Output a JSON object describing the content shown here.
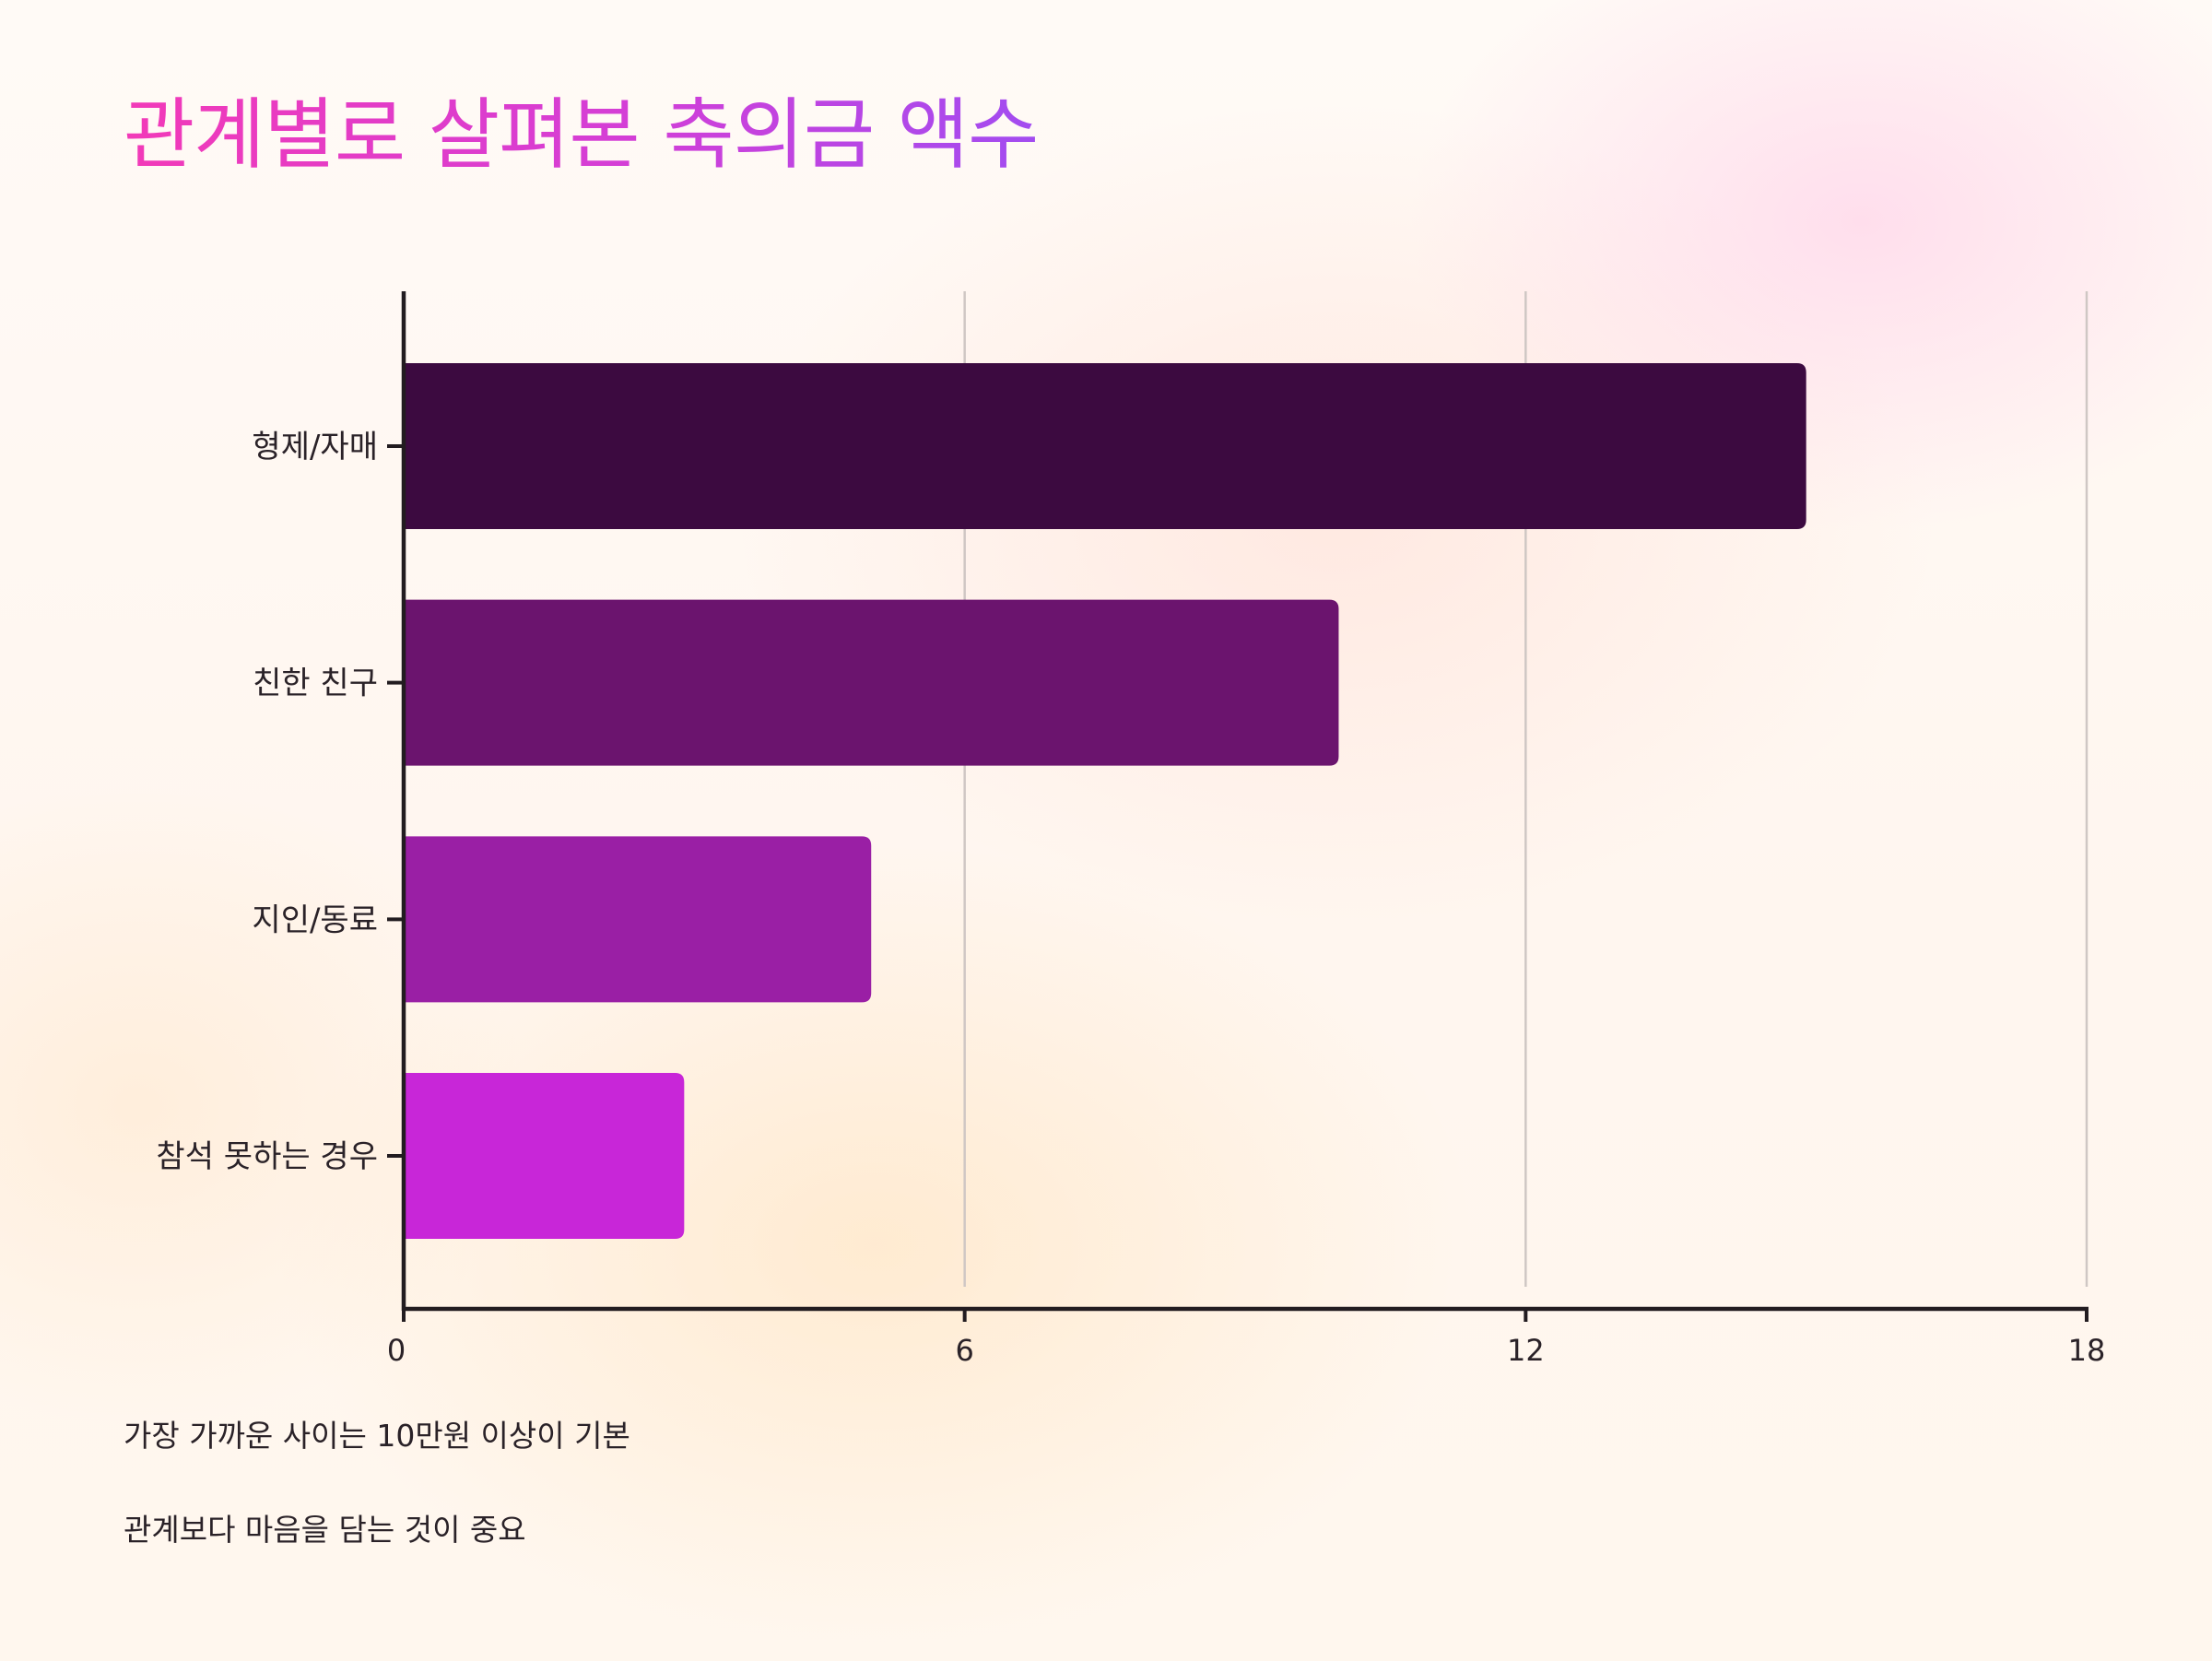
{
  "title": "관계별로 살펴본 축의금 액수",
  "notes": [
    "가장 가까운 사이는 10만원 이상이 기본",
    "관계보다 마음을 담는 것이 중요"
  ],
  "chart_data": {
    "type": "bar",
    "orientation": "horizontal",
    "categories": [
      "형제/자매",
      "친한 친구",
      "지인/동료",
      "참석 못하는 경우"
    ],
    "values": [
      15,
      10,
      5,
      3
    ],
    "bar_colors": [
      "#3c0a40",
      "#6b146e",
      "#9a1fa5",
      "#c826d8"
    ],
    "xlim": [
      0,
      18
    ],
    "xticks": [
      0,
      6,
      12,
      18
    ],
    "grid": true,
    "xlabel": "",
    "ylabel": ""
  },
  "colors": {
    "axis": "#221c20",
    "grid": "#cfc7c4",
    "tick_text": "#2a2228",
    "title_gradient": [
      "#f23ab8",
      "#a24cf0"
    ]
  }
}
